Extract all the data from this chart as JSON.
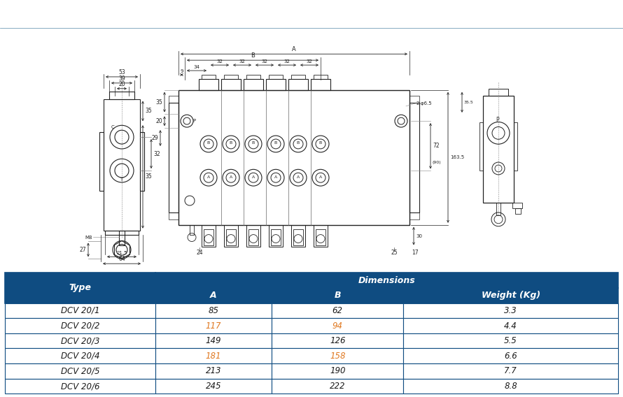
{
  "title": "Dimensions",
  "title_bg": "#0f4c81",
  "title_fg": "#ffffff",
  "table_header_bg": "#0f4c81",
  "table_header_fg": "#ffffff",
  "table_row_bg": "#ffffff",
  "table_row_fg": "#1a1a1a",
  "table_border_color": "#0f4c81",
  "orange_color": "#e07820",
  "rows": [
    [
      "DCV 20/1",
      "85",
      "62",
      "3.3"
    ],
    [
      "DCV 20/2",
      "117",
      "94",
      "4.4"
    ],
    [
      "DCV 20/3",
      "149",
      "126",
      "5.5"
    ],
    [
      "DCV 20/4",
      "181",
      "158",
      "6.6"
    ],
    [
      "DCV 20/5",
      "213",
      "190",
      "7.7"
    ],
    [
      "DCV 20/6",
      "245",
      "222",
      "8.8"
    ]
  ],
  "orange_rows": [
    1,
    3
  ],
  "fig_bg": "#ffffff",
  "draw_color": "#222222",
  "draw_lw": 0.8
}
